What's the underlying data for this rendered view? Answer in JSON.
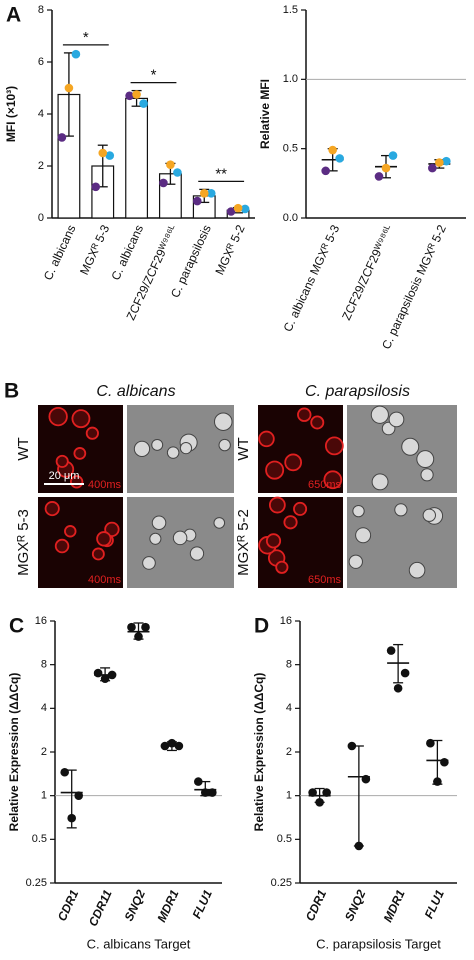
{
  "chart_data": [
    {
      "type": "bar",
      "label": "A",
      "ylabel": "MFI (×10³)",
      "categories": [
        "C. albicans",
        "MGXᴿ 5-3",
        "C. albicans",
        "ZCF29/ZCF29ᵂ⁹⁸⁶ᴸ",
        "C. parapsilosis",
        "MGXᴿ 5-2"
      ],
      "values": [
        4.75,
        2.0,
        4.6,
        1.7,
        0.85,
        0.3
      ],
      "errors": [
        1.6,
        0.8,
        0.3,
        0.4,
        0.25,
        0.1
      ],
      "color": "#ffffff",
      "points": [
        {
          "color": "#5b2c83",
          "values": [
            3.1,
            1.2,
            4.7,
            1.35,
            0.65,
            0.25
          ]
        },
        {
          "color": "#29a9e0",
          "values": [
            6.3,
            2.4,
            4.4,
            1.75,
            0.95,
            0.35
          ]
        },
        {
          "color": "#f5a623",
          "values": [
            5.0,
            2.5,
            4.75,
            2.05,
            0.95,
            0.38
          ]
        }
      ],
      "significance": [
        {
          "text": "*",
          "categories": [
            0,
            1
          ]
        },
        {
          "text": "*",
          "categories": [
            2,
            3
          ]
        },
        {
          "text": "**",
          "categories": [
            4,
            5
          ]
        }
      ],
      "ylim": [
        0,
        8
      ],
      "yticks": [
        0,
        2,
        4,
        6,
        8
      ]
    },
    {
      "type": "dot",
      "ylabel": "Relative MFI",
      "categories": [
        "C. albicans MGXᴿ 5-3",
        "ZCF29/ZCF29ᵂ⁹⁸⁶ᴸ",
        "C. parapsilosis MGXᴿ 5-2"
      ],
      "values": [
        0.42,
        0.37,
        0.39
      ],
      "errors": [
        0.08,
        0.08,
        0.03
      ],
      "points": [
        {
          "color": "#5b2c83",
          "values": [
            0.34,
            0.3,
            0.36
          ]
        },
        {
          "color": "#29a9e0",
          "values": [
            0.43,
            0.45,
            0.41
          ]
        },
        {
          "color": "#f5a623",
          "values": [
            0.49,
            0.36,
            0.4
          ]
        }
      ],
      "refline": 1,
      "ylim": [
        0,
        1.5
      ],
      "yticks": [
        {
          "value": 0,
          "label": "0.0"
        },
        {
          "value": 0.5,
          "label": "0.5"
        },
        {
          "value": 1,
          "label": "1.0"
        },
        {
          "value": 1.5,
          "label": "1.5"
        }
      ]
    },
    {
      "type": "dot",
      "label": "C",
      "ylabel": "Relative Expression (ΔΔCq)",
      "xlabel": "C. albicans Target",
      "yscale": "log",
      "categories": [
        "CDR1",
        "CDR11",
        "SNQ2",
        "MDR1",
        "FLU1"
      ],
      "values": [
        1.05,
        6.8,
        13.5,
        2.2,
        1.1
      ],
      "errors": [
        [
          0.6,
          1.5
        ],
        [
          6.2,
          7.6
        ],
        [
          12,
          15.5
        ],
        [
          2.05,
          2.35
        ],
        [
          1,
          1.25
        ]
      ],
      "points": [
        {
          "color": "#111111",
          "values": [
            1.45,
            7,
            14.5,
            2.2,
            1.25
          ]
        },
        {
          "color": "#111111",
          "values": [
            1.0,
            6.8,
            14.5,
            2.2,
            1.05
          ]
        },
        {
          "color": "#111111",
          "values": [
            0.7,
            6.4,
            12.5,
            2.3,
            1.05
          ]
        }
      ],
      "refline": 1,
      "ylim": [
        0.25,
        16
      ],
      "yticks": [
        0.25,
        0.5,
        1,
        2,
        4,
        8,
        16
      ]
    },
    {
      "type": "dot",
      "label": "D",
      "ylabel": "Relative Expression (ΔΔCq)",
      "xlabel": "C. parapsilosis Target",
      "yscale": "log",
      "categories": [
        "CDR1",
        "SNQ2",
        "MDR1",
        "FLU1"
      ],
      "values": [
        1.0,
        1.35,
        8.2,
        1.75
      ],
      "errors": [
        [
          0.9,
          1.12
        ],
        [
          0.45,
          2.2
        ],
        [
          6,
          11
        ],
        [
          1.2,
          2.4
        ]
      ],
      "points": [
        {
          "color": "#111111",
          "values": [
            1.05,
            2.2,
            10,
            2.3
          ]
        },
        {
          "color": "#111111",
          "values": [
            1.05,
            1.3,
            7,
            1.7
          ]
        },
        {
          "color": "#111111",
          "values": [
            0.9,
            0.45,
            5.5,
            1.25
          ]
        }
      ],
      "refline": 1,
      "ylim": [
        0.25,
        16
      ],
      "yticks": [
        0.25,
        0.5,
        1,
        2,
        4,
        8,
        16
      ]
    }
  ],
  "microscopy": {
    "label": "B",
    "scale_bar": "20 μm",
    "panels": [
      {
        "title": "C. albicans",
        "rows": [
          {
            "label": "WT",
            "exposure": "400ms"
          },
          {
            "label": "MGXᴿ 5-3",
            "exposure": "400ms"
          }
        ]
      },
      {
        "title": "C. parapsilosis",
        "rows": [
          {
            "label": "WT",
            "exposure": "650ms"
          },
          {
            "label": "MGXᴿ 5-2",
            "exposure": "650ms"
          }
        ]
      }
    ]
  }
}
